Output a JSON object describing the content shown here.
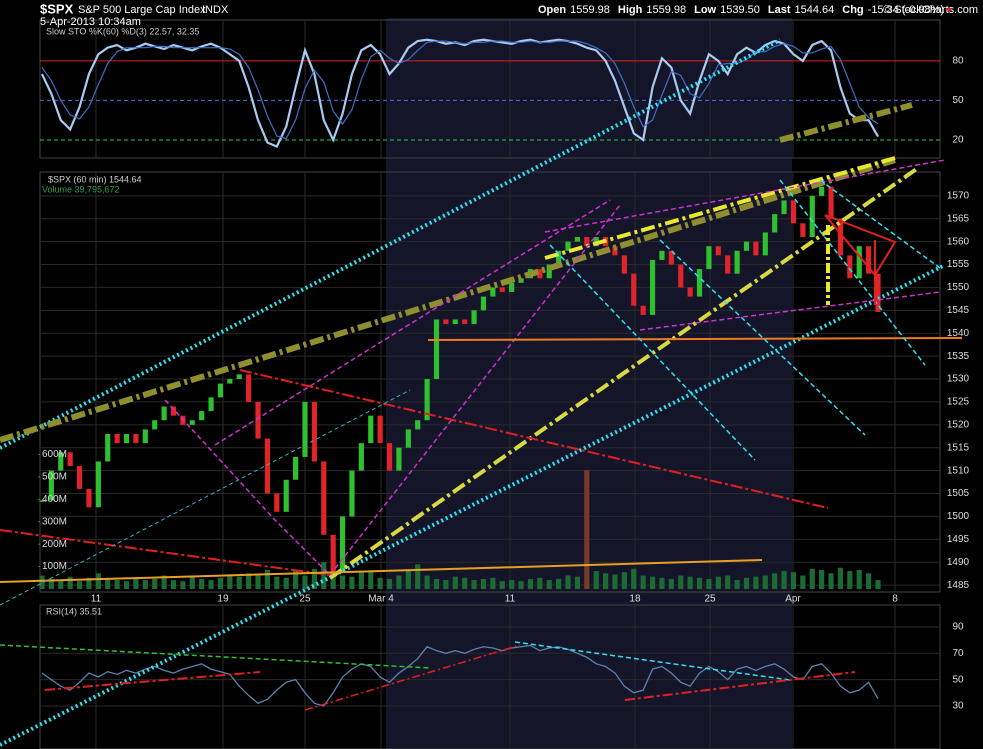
{
  "header": {
    "symbol": "$SPX",
    "name": "S&P 500 Large Cap Index",
    "exchange": "INDX",
    "date": "5-Apr-2013 10:34am",
    "quote": [
      {
        "label": "Open",
        "value": "1559.98"
      },
      {
        "label": "High",
        "value": "1559.98"
      },
      {
        "label": "Low",
        "value": "1539.50"
      },
      {
        "label": "Last",
        "value": "1544.64"
      },
      {
        "label": "Chg",
        "value": "-15.34 (-0.98%)"
      }
    ],
    "source": "© StockCharts.com"
  },
  "chart_data": [
    {
      "type": "line",
      "title": "Slow STO %K(60) %D(3) 22.57, 32.35",
      "xlim": [
        -0.21,
        95.6
      ],
      "ylim": [
        6.3,
        111
      ],
      "yticks": [
        20,
        50,
        80
      ],
      "ytick_colors": [
        "#2ecc40",
        "#4a6fd0",
        "#d22"
      ],
      "series": [
        {
          "color": "#a9cbf2",
          "values": [
            70,
            55,
            35,
            28,
            45,
            70,
            85,
            90,
            92,
            88,
            90,
            93,
            91,
            89,
            92,
            90,
            88,
            91,
            93,
            90,
            85,
            80,
            60,
            35,
            18,
            15,
            30,
            60,
            88,
            70,
            35,
            20,
            40,
            70,
            88,
            92,
            85,
            70,
            78,
            90,
            95,
            96,
            95,
            93,
            94,
            92,
            95,
            96,
            95,
            94,
            93,
            95,
            96,
            94,
            95,
            96,
            95,
            93,
            90,
            88,
            80,
            65,
            45,
            25,
            20,
            60,
            82,
            75,
            50,
            40,
            65,
            85,
            80,
            70,
            85,
            90,
            86,
            92,
            95,
            93,
            85,
            80,
            92,
            95,
            88,
            60,
            40,
            35,
            35,
            22.57
          ]
        },
        {
          "color": "#3d6fc4",
          "values": [
            75,
            65,
            50,
            39,
            36,
            45,
            62,
            78,
            87,
            90,
            90,
            90,
            91,
            91,
            90,
            90,
            90,
            90,
            90,
            90,
            89,
            85,
            75,
            58,
            38,
            23,
            21,
            35,
            59,
            73,
            64,
            42,
            32,
            43,
            66,
            83,
            88,
            82,
            78,
            81,
            88,
            94,
            95,
            95,
            94,
            93,
            94,
            94,
            95,
            95,
            94,
            94,
            95,
            94,
            94,
            95,
            95,
            95,
            93,
            90,
            86,
            78,
            63,
            45,
            30,
            35,
            54,
            72,
            69,
            55,
            52,
            63,
            77,
            78,
            78,
            81,
            87,
            87,
            91,
            93,
            91,
            86,
            86,
            89,
            91,
            81,
            63,
            45,
            37,
            32.35
          ]
        }
      ]
    },
    {
      "type": "candlestick",
      "title": "$SPX (60 min) 1544.64",
      "volume_title": "Volume 39,795,672",
      "xlim": [
        -0.21,
        95.6
      ],
      "xticks": [
        {
          "value": 5.75,
          "label": "11"
        },
        {
          "value": 19.27,
          "label": "19"
        },
        {
          "value": 28.0,
          "label": "25"
        },
        {
          "value": 36.09,
          "label": "Mar 4"
        },
        {
          "value": 49.82,
          "label": "11"
        },
        {
          "value": 63.13,
          "label": "18"
        },
        {
          "value": 71.12,
          "label": "25"
        },
        {
          "value": 79.95,
          "label": "Apr"
        },
        {
          "value": 90.81,
          "label": "8"
        }
      ],
      "ylim": [
        1483.5,
        1575.2
      ],
      "yticks": [
        1485,
        1490,
        1495,
        1500,
        1505,
        1510,
        1515,
        1520,
        1525,
        1530,
        1535,
        1540,
        1545,
        1550,
        1555,
        1560,
        1565,
        1570
      ],
      "up_color": "#2fc02f",
      "down_color": "#e0242a",
      "values": [
        1503.5,
        1510,
        1514,
        1511,
        1506,
        1502,
        1512,
        1518,
        1516,
        1518,
        1516,
        1519,
        1521,
        1524,
        1522,
        1520,
        1521,
        1523,
        1526,
        1529,
        1530,
        1531,
        1525,
        1517,
        1505,
        1501,
        1508,
        1513,
        1525,
        1512,
        1496,
        1488,
        1500,
        1510,
        1516,
        1522,
        1516,
        1510,
        1515,
        1519,
        1521,
        1530,
        1543,
        1542,
        1543,
        1542,
        1545,
        1548,
        1550,
        1549,
        1551,
        1552,
        1554,
        1552,
        1555,
        1558,
        1560,
        1561,
        1559,
        1561,
        1559,
        1557,
        1553,
        1546,
        1544,
        1556,
        1558,
        1555,
        1550,
        1548,
        1554,
        1559,
        1557,
        1553,
        1558,
        1560,
        1557,
        1562,
        1566,
        1569,
        1564,
        1561,
        1570,
        1572,
        1565,
        1557,
        1552,
        1559,
        1553,
        1544.64
      ],
      "y2lim": [
        0,
        1860
      ],
      "y2ticks": [
        {
          "value": 100,
          "label": "100M"
        },
        {
          "value": 200,
          "label": "200M"
        },
        {
          "value": 300,
          "label": "300M"
        },
        {
          "value": 400,
          "label": "400M"
        },
        {
          "value": 500,
          "label": "500M"
        },
        {
          "value": 600,
          "label": "600M"
        }
      ],
      "volume_color": "#1d6b34",
      "volume_spike_color": "#7a3a2a",
      "volume": [
        60,
        45,
        40,
        55,
        35,
        50,
        70,
        45,
        40,
        35,
        50,
        40,
        45,
        60,
        40,
        35,
        55,
        45,
        40,
        50,
        65,
        55,
        70,
        60,
        85,
        55,
        50,
        80,
        60,
        90,
        120,
        70,
        60,
        55,
        80,
        75,
        50,
        45,
        60,
        85,
        110,
        60,
        45,
        40,
        55,
        50,
        40,
        45,
        50,
        35,
        40,
        35,
        45,
        50,
        40,
        45,
        60,
        55,
        530,
        80,
        70,
        65,
        75,
        90,
        60,
        55,
        50,
        45,
        60,
        55,
        50,
        45,
        55,
        60,
        40,
        50,
        55,
        60,
        70,
        80,
        75,
        60,
        90,
        85,
        70,
        95,
        80,
        85,
        70,
        40
      ]
    },
    {
      "type": "line",
      "title": "RSI(14) 35.51",
      "xlim": [
        -0.21,
        95.6
      ],
      "ylim": [
        -2.7,
        106.7
      ],
      "yticks": [
        30,
        50,
        70,
        90
      ],
      "color": "#5b82ad",
      "values": [
        55,
        50,
        45,
        42,
        48,
        55,
        52,
        56,
        54,
        57,
        55,
        58,
        60,
        57,
        55,
        58,
        60,
        62,
        58,
        56,
        54,
        45,
        38,
        32,
        35,
        42,
        48,
        50,
        40,
        32,
        30,
        40,
        52,
        58,
        62,
        60,
        52,
        48,
        55,
        60,
        66,
        75,
        72,
        70,
        72,
        70,
        73,
        75,
        74,
        72,
        74,
        75,
        76,
        72,
        74,
        75,
        73,
        70,
        67,
        62,
        60,
        55,
        45,
        40,
        42,
        58,
        60,
        55,
        48,
        45,
        55,
        60,
        56,
        50,
        58,
        60,
        57,
        60,
        62,
        58,
        52,
        50,
        60,
        62,
        55,
        45,
        40,
        42,
        48,
        35.51
      ]
    }
  ]
}
